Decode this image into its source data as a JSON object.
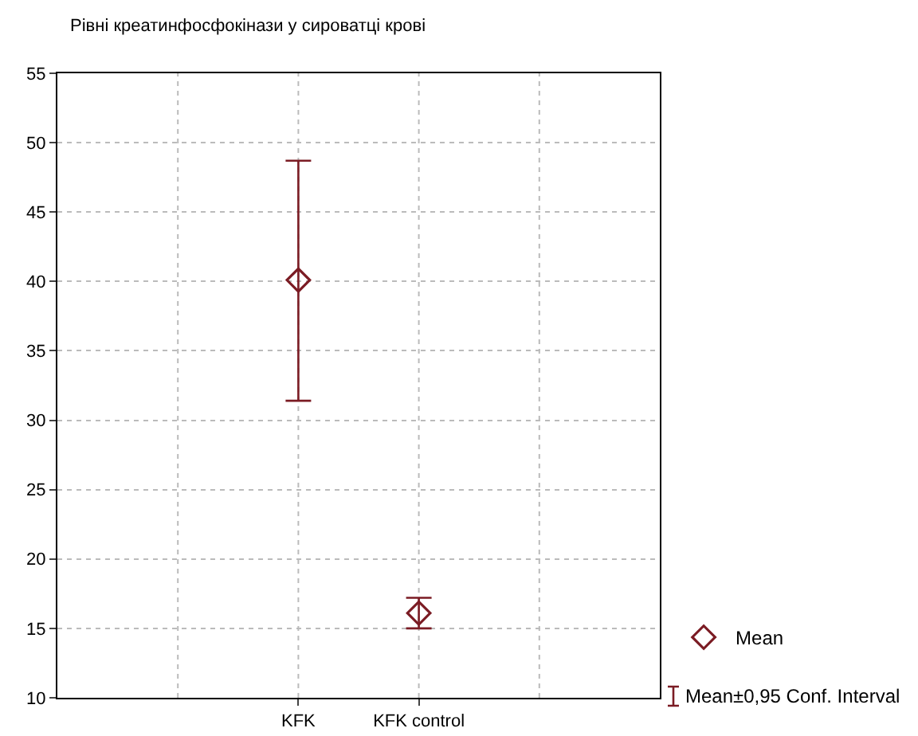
{
  "chart_data": {
    "type": "scatter",
    "title": "Рівні креатинфосфокінази у сироватці крові",
    "categories": [
      "KFK",
      "KFK control"
    ],
    "series": [
      {
        "name": "Mean",
        "color": "#7b1c24",
        "values": [
          40.1,
          16.1
        ],
        "errors": [
          [
            31.4,
            48.7
          ],
          [
            15.0,
            17.2
          ]
        ]
      }
    ],
    "marker": "diamond",
    "ylim": [
      10,
      55
    ],
    "yticks": [
      10,
      15,
      20,
      25,
      30,
      35,
      40,
      45,
      50,
      55
    ],
    "grid": true,
    "legend": "bottom right",
    "annotations": [
      "Mean±0,95 Conf. Interval"
    ]
  }
}
